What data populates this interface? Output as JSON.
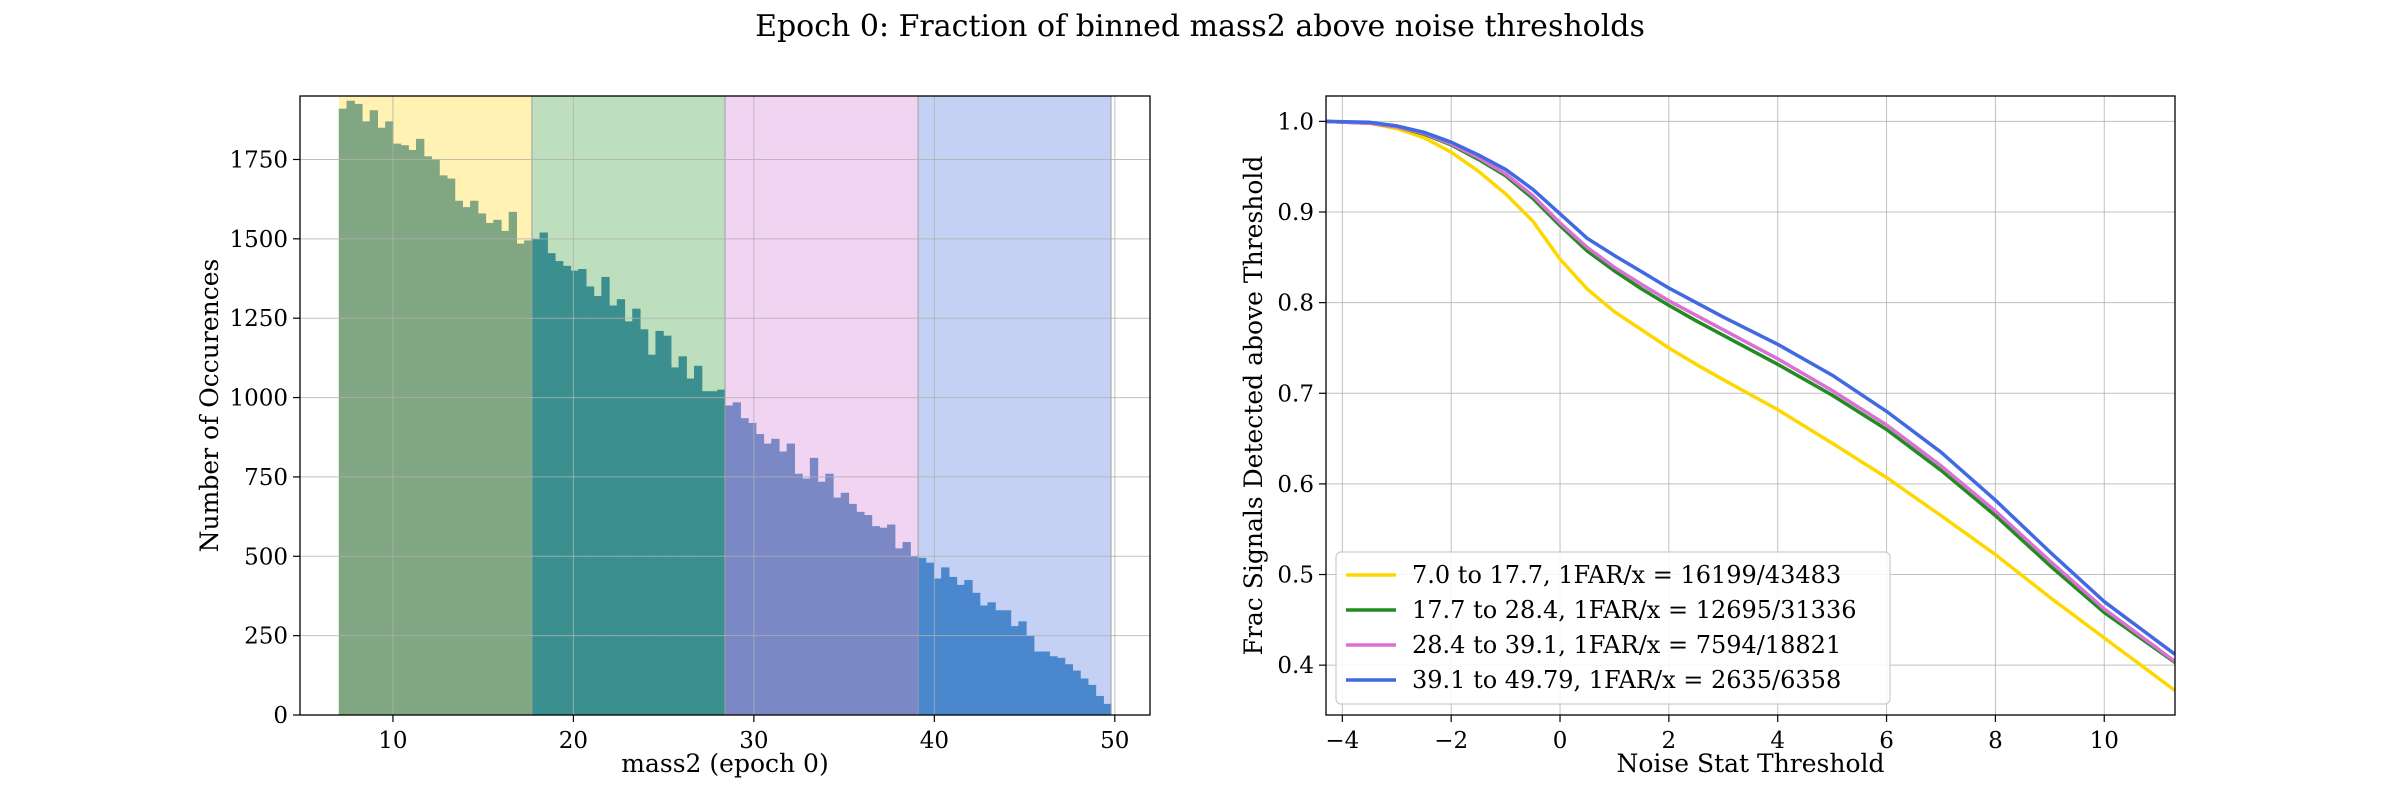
{
  "figure": {
    "title": "Epoch 0: Fraction of binned mass2 above noise thresholds"
  },
  "chart_data": [
    {
      "type": "bar",
      "subtype": "histogram",
      "title": "",
      "xlabel": "mass2 (epoch 0)",
      "ylabel": "Number of Occurences",
      "xlim": [
        4.85,
        51.95
      ],
      "ylim": [
        0,
        1950
      ],
      "xticks": [
        10,
        20,
        30,
        40,
        50
      ],
      "yticks": [
        0,
        250,
        500,
        750,
        1000,
        1250,
        1500,
        1750
      ],
      "grid": true,
      "bin_edges_start": 7.0,
      "bin_width": 0.4279,
      "bin_count": 100,
      "counts": [
        1910,
        1935,
        1925,
        1870,
        1905,
        1850,
        1870,
        1800,
        1795,
        1780,
        1815,
        1760,
        1750,
        1700,
        1690,
        1620,
        1600,
        1620,
        1580,
        1550,
        1560,
        1525,
        1585,
        1485,
        1495,
        1500,
        1520,
        1455,
        1430,
        1415,
        1400,
        1405,
        1350,
        1320,
        1380,
        1290,
        1310,
        1240,
        1280,
        1215,
        1135,
        1210,
        1195,
        1095,
        1130,
        1060,
        1100,
        1020,
        1020,
        1025,
        975,
        985,
        935,
        920,
        885,
        855,
        870,
        830,
        855,
        760,
        745,
        810,
        735,
        760,
        685,
        700,
        665,
        640,
        630,
        595,
        590,
        600,
        525,
        545,
        500,
        495,
        480,
        430,
        465,
        435,
        410,
        425,
        385,
        345,
        355,
        330,
        330,
        280,
        295,
        250,
        200,
        200,
        185,
        180,
        160,
        140,
        115,
        95,
        60,
        35
      ],
      "shaded_ranges": [
        {
          "from": 7.0,
          "to": 17.7,
          "color": "#fff2b3"
        },
        {
          "from": 17.7,
          "to": 28.4,
          "color": "#bedfbe"
        },
        {
          "from": 28.4,
          "to": 39.1,
          "color": "#f1d4f1"
        },
        {
          "from": 39.1,
          "to": 49.79,
          "color": "#c4d1f4"
        }
      ],
      "bar_colors": [
        "#80a682",
        "#3c8f8f",
        "#7a88c6",
        "#4a87cc"
      ]
    },
    {
      "type": "line",
      "title": "",
      "xlabel": "Noise Stat Threshold",
      "ylabel": "Frac Signals Detected above Threshold",
      "xlim": [
        -4.3,
        11.3
      ],
      "ylim": [
        0.345,
        1.028
      ],
      "xticks": [
        -4,
        -2,
        0,
        2,
        4,
        6,
        8,
        10
      ],
      "yticks": [
        0.4,
        0.5,
        0.6,
        0.7,
        0.8,
        0.9,
        1.0
      ],
      "grid": true,
      "legend_position": "lower-left",
      "x": [
        -4.3,
        -3.5,
        -3,
        -2.5,
        -2,
        -1.5,
        -1,
        -0.5,
        0,
        0.5,
        1,
        1.5,
        2,
        2.5,
        3,
        4,
        5,
        6,
        7,
        8,
        9,
        10,
        11.3
      ],
      "series": [
        {
          "name": "7.0 to 17.7, 1FAR/x = 16199/43483",
          "color": "#ffd700",
          "values": [
            1.0,
            0.998,
            0.992,
            0.982,
            0.966,
            0.945,
            0.92,
            0.89,
            0.848,
            0.815,
            0.79,
            0.77,
            0.75,
            0.732,
            0.715,
            0.682,
            0.645,
            0.607,
            0.565,
            0.522,
            0.475,
            0.43,
            0.372
          ]
        },
        {
          "name": "17.7 to 28.4, 1FAR/x = 12695/31336",
          "color": "#228b22",
          "values": [
            1.0,
            0.998,
            0.994,
            0.986,
            0.974,
            0.958,
            0.94,
            0.915,
            0.885,
            0.857,
            0.835,
            0.815,
            0.797,
            0.78,
            0.764,
            0.732,
            0.698,
            0.66,
            0.615,
            0.565,
            0.51,
            0.458,
            0.403
          ]
        },
        {
          "name": "28.4 to 39.1, 1FAR/x = 7594/18821",
          "color": "#da70d6",
          "values": [
            1.0,
            0.998,
            0.994,
            0.987,
            0.975,
            0.96,
            0.942,
            0.918,
            0.888,
            0.861,
            0.839,
            0.82,
            0.802,
            0.786,
            0.77,
            0.738,
            0.703,
            0.665,
            0.62,
            0.57,
            0.515,
            0.462,
            0.404
          ]
        },
        {
          "name": "39.1 to 49.79, 1FAR/x = 2635/6358",
          "color": "#4169e1",
          "values": [
            1.0,
            0.999,
            0.995,
            0.988,
            0.977,
            0.963,
            0.947,
            0.925,
            0.898,
            0.871,
            0.852,
            0.834,
            0.816,
            0.8,
            0.784,
            0.754,
            0.72,
            0.68,
            0.635,
            0.582,
            0.525,
            0.47,
            0.412
          ]
        }
      ]
    }
  ]
}
